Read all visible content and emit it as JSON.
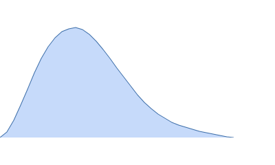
{
  "chart_data": {
    "type": "area",
    "x": [
      0,
      10,
      20,
      30,
      40,
      50,
      60,
      70,
      80,
      90,
      100,
      110,
      120,
      130,
      140,
      150,
      160,
      170,
      180,
      190,
      200,
      210,
      220,
      230,
      240,
      250,
      260,
      270,
      280,
      290,
      300,
      310,
      320,
      330,
      340
    ],
    "values": [
      0,
      8,
      25,
      47,
      70,
      94,
      115,
      132,
      145,
      154,
      158,
      160,
      157,
      150,
      140,
      128,
      115,
      101,
      88,
      75,
      62,
      51,
      42,
      34,
      28,
      22,
      18,
      15,
      12,
      9,
      7,
      5,
      3,
      1,
      0
    ],
    "color": "#c6dafa",
    "line_color": "#3c6da8",
    "xlim": [
      0,
      400
    ],
    "ylim": [
      0,
      200
    ]
  }
}
